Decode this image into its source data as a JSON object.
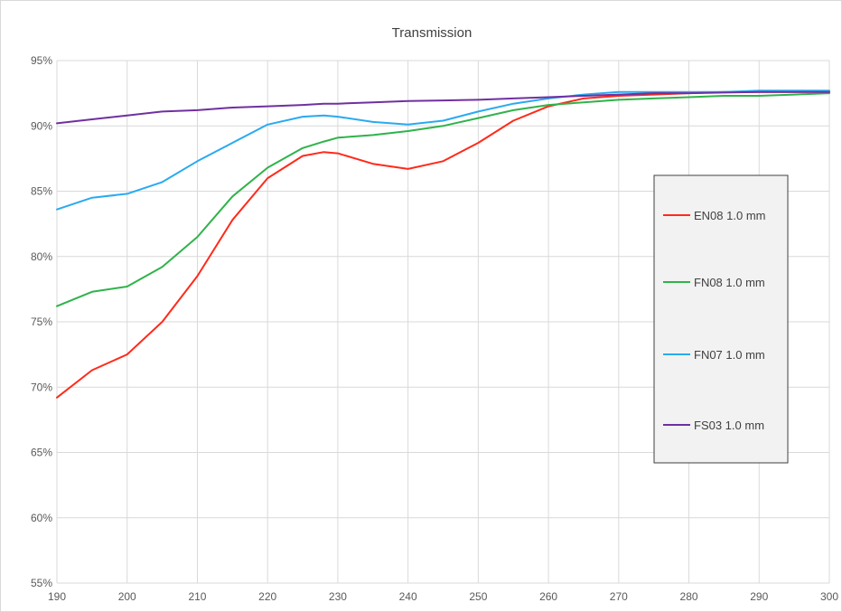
{
  "chart_data": {
    "type": "line",
    "title": "Transmission",
    "xlabel": "",
    "ylabel": "",
    "xlim": [
      190,
      300
    ],
    "ylim": [
      55,
      95
    ],
    "grid": true,
    "legend_placement": "right",
    "x_ticks": [
      "190",
      "200",
      "210",
      "220",
      "230",
      "240",
      "250",
      "260",
      "270",
      "280",
      "290",
      "300"
    ],
    "y_ticks": [
      "55%",
      "60%",
      "65%",
      "70%",
      "75%",
      "80%",
      "85%",
      "90%",
      "95%"
    ],
    "x": [
      190,
      195,
      200,
      205,
      210,
      215,
      220,
      225,
      228,
      230,
      235,
      240,
      245,
      250,
      255,
      260,
      265,
      270,
      275,
      280,
      285,
      290,
      295,
      300
    ],
    "series": [
      {
        "name": "EN08 1.0 mm",
        "color": "#ff2a1a",
        "values": [
          69.2,
          71.3,
          72.5,
          75.0,
          78.5,
          82.8,
          86.0,
          87.7,
          88.0,
          87.9,
          87.1,
          86.7,
          87.3,
          88.7,
          90.4,
          91.5,
          92.1,
          92.3,
          92.4,
          92.5,
          92.6,
          92.6,
          92.6,
          92.6
        ]
      },
      {
        "name": "FN08 1.0 mm",
        "color": "#2fb34a",
        "values": [
          76.2,
          77.3,
          77.7,
          79.2,
          81.5,
          84.6,
          86.8,
          88.3,
          88.8,
          89.1,
          89.3,
          89.6,
          90.0,
          90.6,
          91.2,
          91.6,
          91.8,
          92.0,
          92.1,
          92.2,
          92.3,
          92.3,
          92.4,
          92.5
        ]
      },
      {
        "name": "FN07 1.0 mm",
        "color": "#29aaf0",
        "values": [
          83.6,
          84.5,
          84.8,
          85.7,
          87.3,
          88.7,
          90.1,
          90.7,
          90.8,
          90.7,
          90.3,
          90.1,
          90.4,
          91.1,
          91.7,
          92.1,
          92.4,
          92.6,
          92.6,
          92.6,
          92.6,
          92.7,
          92.7,
          92.7
        ]
      },
      {
        "name": "FS03 1.0 mm",
        "color": "#7030a0",
        "values": [
          90.2,
          90.5,
          90.8,
          91.1,
          91.2,
          91.4,
          91.5,
          91.6,
          91.7,
          91.7,
          91.8,
          91.9,
          91.95,
          92.0,
          92.1,
          92.2,
          92.3,
          92.4,
          92.5,
          92.5,
          92.55,
          92.6,
          92.6,
          92.6
        ]
      }
    ]
  }
}
